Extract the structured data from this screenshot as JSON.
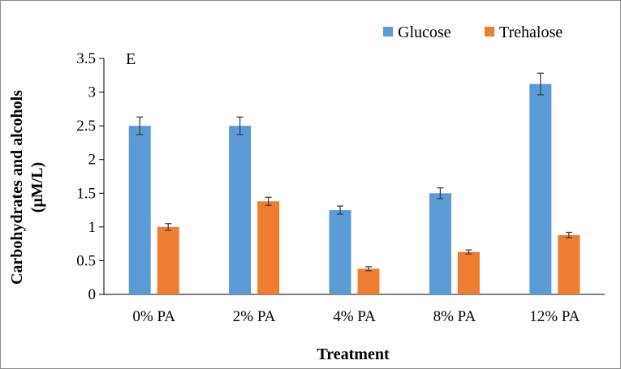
{
  "chart_data": {
    "type": "bar",
    "panel_label": "E",
    "categories": [
      "0% PA",
      "2% PA",
      "4% PA",
      "8% PA",
      "12% PA"
    ],
    "series": [
      {
        "name": "Glucose",
        "color": "#5b9bd5",
        "values": [
          2.5,
          2.5,
          1.25,
          1.5,
          3.12
        ],
        "errors": [
          0.13,
          0.13,
          0.06,
          0.08,
          0.16
        ]
      },
      {
        "name": "Trehalose",
        "color": "#ed7d31",
        "values": [
          1.0,
          1.38,
          0.38,
          0.63,
          0.88
        ],
        "errors": [
          0.05,
          0.06,
          0.03,
          0.03,
          0.04
        ]
      }
    ],
    "xlabel": "Treatment",
    "ylabel_lines": [
      "Carbohydrates  and alcohols",
      "(μM/L)"
    ],
    "ylim": [
      0,
      3.5
    ],
    "yticks": [
      "0",
      "0.5",
      "1",
      "1.5",
      "2",
      "2.5",
      "3",
      "3.5"
    ],
    "grid": false,
    "legend_position": "top-right",
    "error_bar_color": "#404040"
  }
}
